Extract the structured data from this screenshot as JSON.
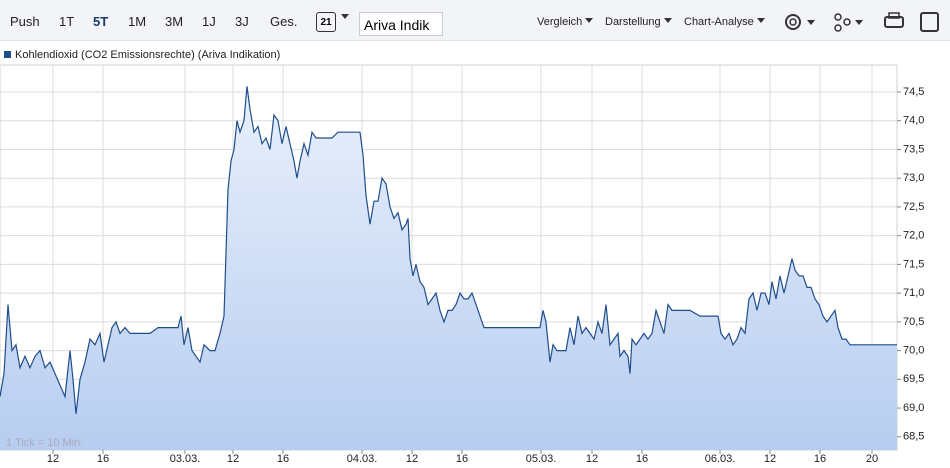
{
  "toolbar": {
    "periods": [
      "Push",
      "1T",
      "5T",
      "1M",
      "3M",
      "1J",
      "3J",
      "Ges."
    ],
    "calendar_day": "21",
    "source": "Ariva Indik",
    "menus": [
      "Vergleich",
      "Darstellung",
      "Chart-Analyse"
    ]
  },
  "chart_data": {
    "type": "line",
    "note": "1 Tick = 10 Min.",
    "x": [
      0,
      0.4,
      0.8,
      1.2,
      1.6,
      2.0,
      2.5,
      3.0,
      3.5,
      4.0,
      4.5,
      5.0,
      5.5,
      6.0,
      6.5,
      7.0,
      7.3,
      7.6,
      8.0,
      8.5,
      9.0,
      9.5,
      10.0,
      10.4,
      10.8,
      11.2,
      11.6,
      12.0,
      12.5,
      13.0,
      14.0,
      15.0,
      15.8,
      17.0,
      17.8,
      18.1,
      18.4,
      18.8,
      19.2,
      19.6,
      20.0,
      20.4,
      21.0,
      21.5,
      22.0,
      22.4,
      22.8,
      23.1,
      23.4,
      23.7,
      24.0,
      24.4,
      24.7,
      25.0,
      25.4,
      25.8,
      26.2,
      26.6,
      27.0,
      27.4,
      27.8,
      28.2,
      28.6,
      29.0,
      29.4,
      29.7,
      30.0,
      30.4,
      30.8,
      31.2,
      31.6,
      32.5,
      33.2,
      33.8,
      35.0,
      36.0,
      36.3,
      36.6,
      37.0,
      37.4,
      37.8,
      38.2,
      38.6,
      39.0,
      39.4,
      39.8,
      40.2,
      40.6,
      40.8,
      41.0,
      41.3,
      41.6,
      42.0,
      42.4,
      42.8,
      43.2,
      43.6,
      44.0,
      44.4,
      44.8,
      45.2,
      45.6,
      46.0,
      46.4,
      46.8,
      47.2,
      47.6,
      48.0,
      48.4,
      48.8,
      49.5,
      50.5,
      51.5,
      53.0,
      54.0,
      54.3,
      54.6,
      55.0,
      55.3,
      55.7,
      56.2,
      56.6,
      57.0,
      57.4,
      57.8,
      58.2,
      58.6,
      59.0,
      59.4,
      59.8,
      60.2,
      60.6,
      61.0,
      61.4,
      61.8,
      62.0,
      62.4,
      62.8,
      63.0,
      63.2,
      63.6,
      64.0,
      64.4,
      64.8,
      65.2,
      65.6,
      66.0,
      66.4,
      66.8,
      67.2,
      68.0,
      69.0,
      70.0,
      71.0,
      71.8,
      72.1,
      72.5,
      72.9,
      73.3,
      73.7,
      74.1,
      74.5,
      74.9,
      75.3,
      75.7,
      76.1,
      76.5,
      76.9,
      77.2,
      77.6,
      78.0,
      78.4,
      78.8,
      79.2,
      79.5,
      79.9,
      80.3,
      80.7,
      81.1,
      81.5,
      81.9,
      82.3,
      82.7,
      83.1,
      83.5,
      83.8,
      84.2,
      84.6,
      85.0,
      86.0,
      87.0,
      88.0,
      89.7
    ],
    "series": [
      {
        "name": "Kohlendioxid (CO2 Emissionsrechte) (Ariva Indikation)",
        "color": "#1f4e8c",
        "values": [
          69.2,
          69.6,
          70.8,
          70.0,
          70.1,
          69.7,
          69.9,
          69.7,
          69.9,
          70.0,
          69.7,
          69.8,
          69.6,
          69.4,
          69.2,
          70.0,
          69.5,
          68.9,
          69.5,
          69.8,
          70.2,
          70.1,
          70.3,
          69.8,
          70.1,
          70.4,
          70.5,
          70.3,
          70.4,
          70.3,
          70.3,
          70.3,
          70.4,
          70.4,
          70.4,
          70.6,
          70.1,
          70.4,
          70.0,
          69.9,
          69.8,
          70.1,
          70.0,
          70.0,
          70.3,
          70.6,
          72.8,
          73.3,
          73.5,
          74.0,
          73.8,
          74.0,
          74.6,
          74.2,
          73.8,
          73.9,
          73.6,
          73.7,
          73.5,
          74.1,
          74.0,
          73.6,
          73.9,
          73.6,
          73.3,
          73.0,
          73.3,
          73.6,
          73.4,
          73.8,
          73.7,
          73.7,
          73.7,
          73.8,
          73.8,
          73.8,
          73.4,
          72.7,
          72.2,
          72.6,
          72.6,
          73.0,
          72.9,
          72.5,
          72.3,
          72.4,
          72.1,
          72.2,
          72.3,
          71.6,
          71.3,
          71.5,
          71.2,
          71.1,
          70.8,
          70.9,
          71.0,
          70.7,
          70.5,
          70.7,
          70.7,
          70.8,
          71.0,
          70.9,
          70.9,
          71.0,
          70.8,
          70.6,
          70.4,
          70.4,
          70.4,
          70.4,
          70.4,
          70.4,
          70.4,
          70.7,
          70.5,
          69.8,
          70.1,
          70.0,
          70.0,
          70.0,
          70.4,
          70.1,
          70.6,
          70.3,
          70.4,
          70.3,
          70.2,
          70.5,
          70.3,
          70.8,
          70.1,
          70.2,
          70.3,
          69.9,
          70.0,
          69.9,
          69.6,
          70.2,
          70.1,
          70.2,
          70.3,
          70.2,
          70.3,
          70.7,
          70.5,
          70.3,
          70.8,
          70.7,
          70.7,
          70.7,
          70.6,
          70.6,
          70.6,
          70.3,
          70.2,
          70.3,
          70.1,
          70.2,
          70.4,
          70.3,
          70.9,
          71.0,
          70.7,
          71.0,
          71.0,
          70.8,
          71.2,
          70.9,
          71.3,
          71.0,
          71.3,
          71.6,
          71.4,
          71.3,
          71.3,
          71.1,
          71.1,
          70.9,
          70.8,
          70.6,
          70.5,
          70.6,
          70.7,
          70.4,
          70.2,
          70.2,
          70.1,
          70.1,
          70.1,
          70.1,
          70.1
        ]
      }
    ],
    "xlim": [
      0,
      89.7
    ],
    "xticks": [
      {
        "value": 5.3,
        "label": "12"
      },
      {
        "value": 10.3,
        "label": "16"
      },
      {
        "value": 18.5,
        "label": "03.03."
      },
      {
        "value": 23.3,
        "label": "12"
      },
      {
        "value": 28.3,
        "label": "16"
      },
      {
        "value": 36.2,
        "label": "04.03."
      },
      {
        "value": 41.2,
        "label": "12"
      },
      {
        "value": 46.2,
        "label": "16"
      },
      {
        "value": 54.1,
        "label": "05.03."
      },
      {
        "value": 59.2,
        "label": "12"
      },
      {
        "value": 64.2,
        "label": "16"
      },
      {
        "value": 72.0,
        "label": "06.03."
      },
      {
        "value": 77.0,
        "label": "12"
      },
      {
        "value": 82.0,
        "label": "16"
      },
      {
        "value": 87.2,
        "label": "20"
      }
    ],
    "ylim": [
      68.27,
      74.97
    ],
    "yticks": [
      {
        "value": 68.5,
        "label": "68,5"
      },
      {
        "value": 69.0,
        "label": "69,0"
      },
      {
        "value": 69.5,
        "label": "69,5"
      },
      {
        "value": 70.0,
        "label": "70,0"
      },
      {
        "value": 70.5,
        "label": "70,5"
      },
      {
        "value": 71.0,
        "label": "71,0"
      },
      {
        "value": 71.5,
        "label": "71,5"
      },
      {
        "value": 72.0,
        "label": "72,0"
      },
      {
        "value": 72.5,
        "label": "72,5"
      },
      {
        "value": 73.0,
        "label": "73,0"
      },
      {
        "value": 73.5,
        "label": "73,5"
      },
      {
        "value": 74.0,
        "label": "74,0"
      },
      {
        "value": 74.5,
        "label": "74,5"
      }
    ],
    "grid": true
  }
}
